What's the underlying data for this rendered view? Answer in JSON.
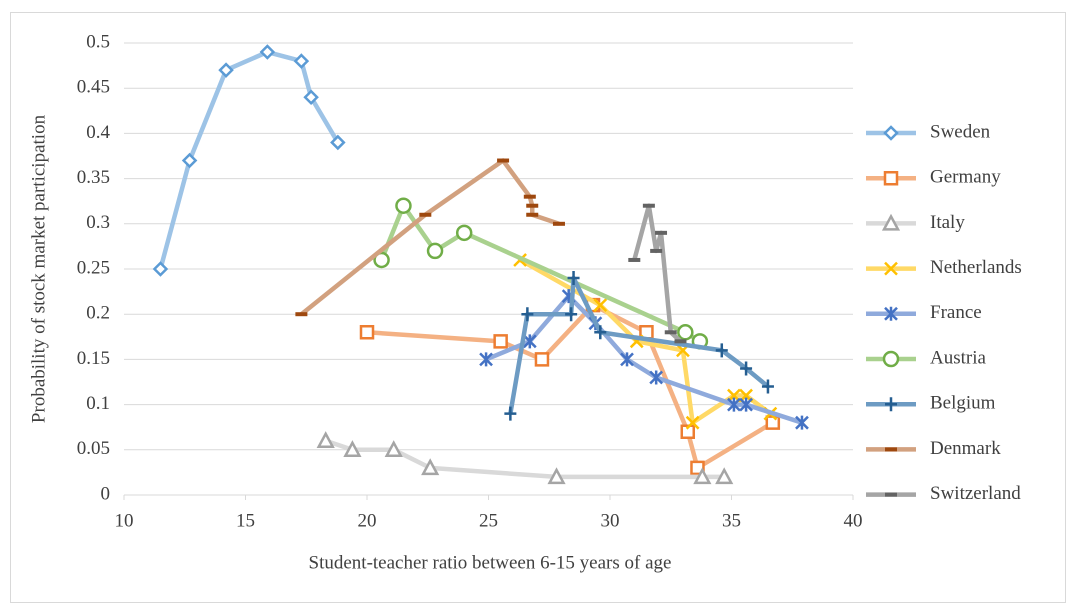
{
  "chart_data": {
    "type": "line",
    "x_label": "Student-teacher ratio between 6-15 years of age",
    "y_label": "Probability of stock market participation",
    "xlim": [
      10,
      40
    ],
    "xticks": [
      10,
      15,
      20,
      25,
      30,
      35,
      40
    ],
    "ylim": [
      0,
      0.5
    ],
    "yticks": [
      0,
      0.05,
      0.1,
      0.15,
      0.2,
      0.25,
      0.3,
      0.35,
      0.4,
      0.45,
      0.5
    ],
    "grid": true,
    "legend": "right",
    "series": [
      {
        "name": "Sweden",
        "color": "#5b9bd5",
        "line_color": "#9dc3e6",
        "marker": "diamond",
        "x": [
          11.5,
          12.7,
          14.2,
          15.9,
          17.3,
          17.7,
          18.8
        ],
        "values": [
          0.25,
          0.37,
          0.47,
          0.49,
          0.48,
          0.44,
          0.39
        ]
      },
      {
        "name": "Germany",
        "color": "#ed7d31",
        "line_color": "#f4b183",
        "marker": "square",
        "x": [
          20.0,
          25.5,
          27.2,
          29.3,
          31.5,
          33.2,
          33.6,
          36.7
        ],
        "values": [
          0.18,
          0.17,
          0.15,
          0.21,
          0.18,
          0.07,
          0.03,
          0.08
        ]
      },
      {
        "name": "Italy",
        "color": "#a5a5a5",
        "line_color": "#d9d9d9",
        "marker": "triangle",
        "x": [
          18.3,
          19.4,
          21.1,
          22.6,
          27.8,
          33.8,
          34.7
        ],
        "values": [
          0.06,
          0.05,
          0.05,
          0.03,
          0.02,
          0.02,
          0.02
        ]
      },
      {
        "name": "Netherlands",
        "color": "#ffc000",
        "line_color": "#ffd966",
        "marker": "x",
        "x": [
          26.3,
          29.6,
          31.1,
          33.0,
          33.4,
          35.1,
          35.6,
          36.6
        ],
        "values": [
          0.26,
          0.21,
          0.17,
          0.16,
          0.08,
          0.11,
          0.11,
          0.09
        ]
      },
      {
        "name": "France",
        "color": "#4472c4",
        "line_color": "#8faadc",
        "marker": "star",
        "x": [
          24.9,
          26.7,
          28.3,
          29.4,
          30.7,
          31.9,
          35.1,
          35.6,
          37.9
        ],
        "values": [
          0.15,
          0.17,
          0.22,
          0.19,
          0.15,
          0.13,
          0.1,
          0.1,
          0.08
        ]
      },
      {
        "name": "Austria",
        "color": "#70ad47",
        "line_color": "#a9d18e",
        "marker": "circle",
        "x": [
          20.6,
          21.5,
          22.8,
          24.0,
          33.1,
          33.7
        ],
        "values": [
          0.26,
          0.32,
          0.27,
          0.29,
          0.18,
          0.17
        ]
      },
      {
        "name": "Belgium",
        "color": "#255e91",
        "line_color": "#6d9bc3",
        "marker": "plus",
        "x": [
          25.9,
          26.6,
          28.4,
          28.5,
          29.6,
          34.6,
          35.6,
          36.5
        ],
        "values": [
          0.09,
          0.2,
          0.2,
          0.24,
          0.18,
          0.16,
          0.14,
          0.12
        ]
      },
      {
        "name": "Denmark",
        "color": "#9e480e",
        "line_color": "#d2a17f",
        "marker": "dash",
        "x": [
          17.3,
          22.4,
          25.6,
          26.7,
          26.8,
          26.8,
          27.9
        ],
        "values": [
          0.2,
          0.31,
          0.37,
          0.33,
          0.32,
          0.31,
          0.3
        ]
      },
      {
        "name": "Switzerland",
        "color": "#636363",
        "line_color": "#a5a5a5",
        "marker": "dash",
        "x": [
          31.0,
          31.6,
          31.9,
          32.1,
          32.5,
          32.9
        ],
        "values": [
          0.26,
          0.32,
          0.27,
          0.29,
          0.18,
          0.17
        ]
      }
    ]
  }
}
